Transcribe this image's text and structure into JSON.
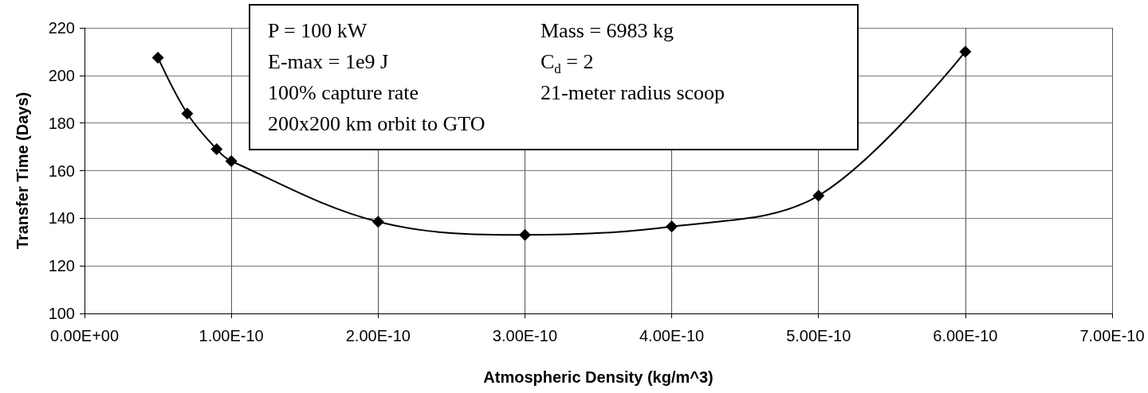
{
  "chart_data": {
    "type": "line",
    "xlabel": "Atmospheric Density (kg/m^3)",
    "ylabel": "Transfer Time (Days)",
    "x": [
      5e-11,
      7e-11,
      9e-11,
      1e-10,
      2e-10,
      3e-10,
      4e-10,
      5e-10,
      6e-10
    ],
    "series": [
      {
        "color": "#000000",
        "values": [
          207.5,
          184,
          169,
          164,
          138.5,
          133,
          136.5,
          149.5,
          210
        ]
      }
    ],
    "xlim": [
      0,
      7e-10
    ],
    "xticks": [
      {
        "value": 0,
        "label": "0.00E+00"
      },
      {
        "value": 1e-10,
        "label": "1.00E-10"
      },
      {
        "value": 2e-10,
        "label": "2.00E-10"
      },
      {
        "value": 3e-10,
        "label": "3.00E-10"
      },
      {
        "value": 4e-10,
        "label": "4.00E-10"
      },
      {
        "value": 5e-10,
        "label": "5.00E-10"
      },
      {
        "value": 6e-10,
        "label": "6.00E-10"
      },
      {
        "value": 7e-10,
        "label": "7.00E-10"
      }
    ],
    "ylim": [
      100,
      220
    ],
    "yticks": [
      100,
      120,
      140,
      160,
      180,
      200,
      220
    ],
    "grid": true,
    "marker": "diamond",
    "line_style": "solid",
    "annotations": [
      "P = 100 kW",
      "Mass = 6983 kg",
      "E-max = 1e9 J",
      "C$_{d}$ = 2",
      "100% capture rate",
      "21-meter radius scoop",
      "200x200 km orbit to GTO"
    ]
  }
}
